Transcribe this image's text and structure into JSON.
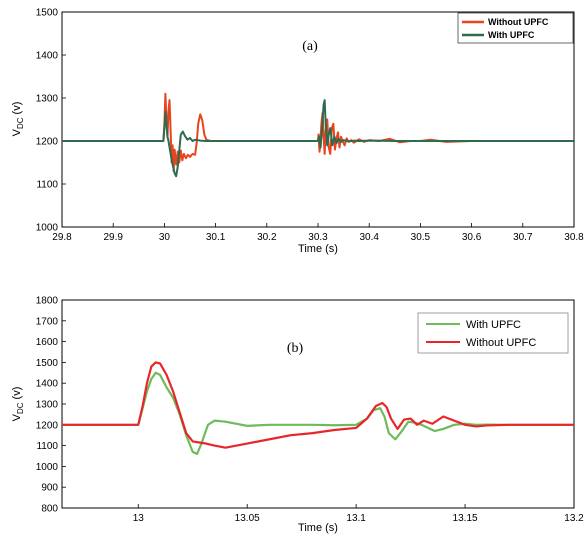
{
  "chart_data": [
    {
      "type": "line",
      "panel_label": "(a)",
      "xlabel": "Time (s)",
      "ylabel_main": "V",
      "ylabel_sub": "DC",
      "ylabel_unit": " (v)",
      "xlim": [
        29.8,
        30.8
      ],
      "ylim": [
        1000,
        1500
      ],
      "xticks": [
        29.8,
        29.9,
        30,
        30.1,
        30.2,
        30.3,
        30.4,
        30.5,
        30.6,
        30.7,
        30.8
      ],
      "xtick_labels": [
        "29.8",
        "29.9",
        "30",
        "30.1",
        "30.2",
        "30.3",
        "30.4",
        "30.5",
        "30.6",
        "30.7",
        "30.8"
      ],
      "yticks": [
        1000,
        1100,
        1200,
        1300,
        1400,
        1500
      ],
      "ytick_labels": [
        "1000",
        "1100",
        "1200",
        "1300",
        "1400",
        "1500"
      ],
      "grid": false,
      "legend_position": "top-right",
      "series": [
        {
          "name": "Without UPFC",
          "color": "#e8451e",
          "x": [
            29.8,
            29.998,
            30.0,
            30.002,
            30.004,
            30.006,
            30.008,
            30.01,
            30.012,
            30.014,
            30.016,
            30.018,
            30.02,
            30.023,
            30.026,
            30.029,
            30.032,
            30.035,
            30.038,
            30.042,
            30.046,
            30.05,
            30.055,
            30.06,
            30.063,
            30.066,
            30.07,
            30.074,
            30.078,
            30.082,
            30.09,
            30.1,
            30.3,
            30.301,
            30.303,
            30.305,
            30.307,
            30.309,
            30.311,
            30.313,
            30.315,
            30.318,
            30.321,
            30.324,
            30.327,
            30.33,
            30.333,
            30.336,
            30.339,
            30.342,
            30.345,
            30.348,
            30.352,
            30.356,
            30.36,
            30.365,
            30.37,
            30.38,
            30.39,
            30.4,
            30.42,
            30.44,
            30.46,
            30.48,
            30.5,
            30.52,
            30.55,
            30.6,
            30.8
          ],
          "values": [
            1200,
            1200,
            1240,
            1310,
            1250,
            1210,
            1270,
            1295,
            1230,
            1150,
            1190,
            1130,
            1180,
            1145,
            1175,
            1150,
            1178,
            1155,
            1170,
            1160,
            1168,
            1163,
            1170,
            1168,
            1195,
            1240,
            1262,
            1248,
            1215,
            1203,
            1200,
            1200,
            1200,
            1215,
            1175,
            1210,
            1245,
            1265,
            1210,
            1170,
            1225,
            1250,
            1185,
            1170,
            1230,
            1240,
            1180,
            1205,
            1220,
            1185,
            1210,
            1200,
            1190,
            1206,
            1198,
            1202,
            1196,
            1204,
            1198,
            1202,
            1200,
            1205,
            1197,
            1200,
            1200,
            1203,
            1198,
            1200,
            1200
          ]
        },
        {
          "name": "With UPFC",
          "color": "#2e6b4f",
          "x": [
            29.8,
            29.998,
            30.0,
            30.002,
            30.004,
            30.006,
            30.008,
            30.011,
            30.014,
            30.017,
            30.02,
            30.023,
            30.026,
            30.029,
            30.032,
            30.036,
            30.04,
            30.045,
            30.05,
            30.055,
            30.06,
            30.07,
            30.08,
            30.1,
            30.3,
            30.302,
            30.305,
            30.308,
            30.311,
            30.313,
            30.315,
            30.318,
            30.321,
            30.324,
            30.328,
            30.332,
            30.336,
            30.34,
            30.345,
            30.35,
            30.36,
            30.37,
            30.38,
            30.4,
            30.45,
            30.5,
            30.55,
            30.6,
            30.8
          ],
          "values": [
            1200,
            1200,
            1230,
            1268,
            1240,
            1210,
            1200,
            1178,
            1158,
            1140,
            1125,
            1118,
            1140,
            1178,
            1215,
            1222,
            1212,
            1203,
            1207,
            1200,
            1203,
            1201,
            1200,
            1200,
            1200,
            1210,
            1185,
            1230,
            1285,
            1295,
            1240,
            1190,
            1215,
            1230,
            1190,
            1210,
            1195,
            1205,
            1198,
            1202,
            1199,
            1201,
            1200,
            1201,
            1200,
            1200,
            1200,
            1200,
            1200
          ]
        }
      ]
    },
    {
      "type": "line",
      "panel_label": "(b)",
      "xlabel": "Time (s)",
      "ylabel_main": "V",
      "ylabel_sub": "DC",
      "ylabel_unit": " (v)",
      "xlim": [
        12.965,
        13.2
      ],
      "ylim": [
        800,
        1800
      ],
      "xticks": [
        13,
        13.05,
        13.1,
        13.15,
        13.2
      ],
      "xtick_labels": [
        "13",
        "13.05",
        "13.1",
        "13.15",
        "13.2"
      ],
      "yticks": [
        800,
        900,
        1000,
        1100,
        1200,
        1300,
        1400,
        1500,
        1600,
        1700,
        1800
      ],
      "ytick_labels": [
        "800",
        "900",
        "1000",
        "1100",
        "1200",
        "1300",
        "1400",
        "1500",
        "1600",
        "1700",
        "1800"
      ],
      "grid": false,
      "legend_position": "top-right",
      "series": [
        {
          "name": "With UPFC",
          "color": "#6dbb5b",
          "x": [
            12.965,
            13.0,
            13.002,
            13.004,
            13.006,
            13.008,
            13.01,
            13.013,
            13.016,
            13.019,
            13.022,
            13.025,
            13.027,
            13.029,
            13.032,
            13.035,
            13.04,
            13.05,
            13.06,
            13.07,
            13.08,
            13.09,
            13.1,
            13.105,
            13.108,
            13.111,
            13.113,
            13.115,
            13.118,
            13.121,
            13.124,
            13.127,
            13.13,
            13.133,
            13.136,
            13.14,
            13.145,
            13.15,
            13.155,
            13.16,
            13.17,
            13.18,
            13.2
          ],
          "values": [
            1200,
            1200,
            1280,
            1360,
            1420,
            1450,
            1440,
            1380,
            1330,
            1250,
            1150,
            1070,
            1060,
            1110,
            1200,
            1220,
            1215,
            1195,
            1200,
            1200,
            1200,
            1198,
            1200,
            1230,
            1270,
            1280,
            1240,
            1160,
            1130,
            1170,
            1215,
            1210,
            1200,
            1185,
            1170,
            1180,
            1200,
            1205,
            1200,
            1201,
            1200,
            1200,
            1200
          ]
        },
        {
          "name": "Without UPFC",
          "color": "#e8262a",
          "x": [
            12.965,
            13.0,
            13.002,
            13.004,
            13.006,
            13.008,
            13.01,
            13.013,
            13.016,
            13.019,
            13.022,
            13.025,
            13.028,
            13.031,
            13.035,
            13.04,
            13.05,
            13.06,
            13.07,
            13.08,
            13.09,
            13.1,
            13.105,
            13.109,
            13.112,
            13.114,
            13.116,
            13.119,
            13.122,
            13.125,
            13.128,
            13.131,
            13.135,
            13.14,
            13.145,
            13.15,
            13.155,
            13.16,
            13.17,
            13.18,
            13.2
          ],
          "values": [
            1200,
            1200,
            1290,
            1400,
            1480,
            1500,
            1495,
            1440,
            1360,
            1260,
            1160,
            1120,
            1115,
            1110,
            1100,
            1090,
            1110,
            1130,
            1150,
            1160,
            1175,
            1185,
            1230,
            1290,
            1305,
            1285,
            1230,
            1180,
            1225,
            1230,
            1200,
            1220,
            1205,
            1240,
            1220,
            1200,
            1192,
            1197,
            1200,
            1200,
            1200
          ]
        }
      ]
    }
  ]
}
